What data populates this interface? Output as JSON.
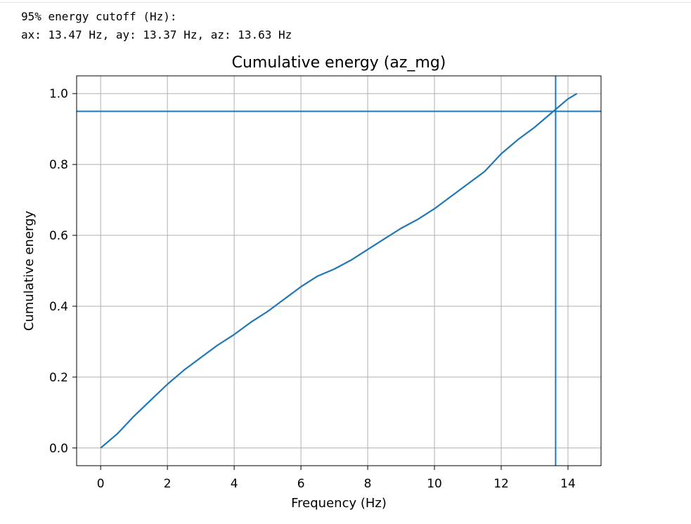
{
  "output": {
    "line1": "95% energy cutoff (Hz):",
    "line2": "ax: 13.47 Hz, ay: 13.37 Hz, az: 13.63 Hz"
  },
  "chart_data": {
    "type": "line",
    "title": "Cumulative energy (az_mg)",
    "xlabel": "Frequency (Hz)",
    "ylabel": "Cumulative energy",
    "xlim": [
      -0.72,
      14.99
    ],
    "ylim": [
      -0.05,
      1.05
    ],
    "xticks": [
      0,
      2,
      4,
      6,
      8,
      10,
      12,
      14
    ],
    "yticks": [
      0.0,
      0.2,
      0.4,
      0.6,
      0.8,
      1.0
    ],
    "xtick_labels": [
      "0",
      "2",
      "4",
      "6",
      "8",
      "10",
      "12",
      "14"
    ],
    "ytick_labels": [
      "0.0",
      "0.2",
      "0.4",
      "0.6",
      "0.8",
      "1.0"
    ],
    "grid": true,
    "series": [
      {
        "color": "#1f77b4",
        "x": [
          0,
          0.5,
          1,
          1.5,
          2,
          2.5,
          3,
          3.5,
          4,
          4.5,
          5,
          5.5,
          6,
          6.5,
          7,
          7.5,
          8,
          8.5,
          9,
          9.5,
          10,
          10.5,
          11,
          11.5,
          12,
          12.5,
          13,
          13.5,
          14,
          14.27
        ],
        "y": [
          0.0,
          0.04,
          0.09,
          0.135,
          0.18,
          0.22,
          0.255,
          0.29,
          0.32,
          0.355,
          0.385,
          0.42,
          0.455,
          0.485,
          0.505,
          0.53,
          0.56,
          0.59,
          0.62,
          0.645,
          0.675,
          0.71,
          0.745,
          0.78,
          0.83,
          0.87,
          0.905,
          0.945,
          0.985,
          1.0
        ]
      }
    ],
    "hline": {
      "y": 0.95,
      "color": "#1f77b4"
    },
    "vline": {
      "x": 13.63,
      "color": "#1f77b4"
    }
  }
}
